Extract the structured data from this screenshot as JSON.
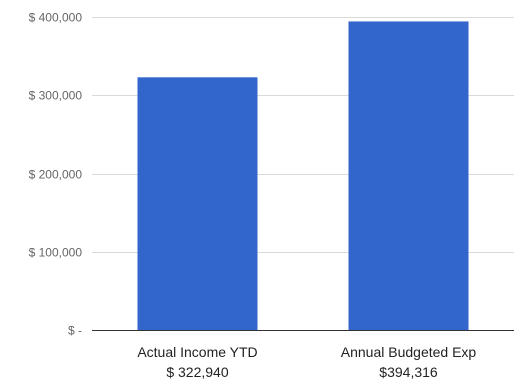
{
  "chart_data": {
    "type": "bar",
    "title": "",
    "xlabel": "",
    "ylabel": "",
    "categories": [
      [
        "Actual Income YTD",
        "$ 322,940"
      ],
      [
        "Annual Budgeted Exp",
        "$394,316"
      ]
    ],
    "values": [
      322940,
      394316
    ],
    "ylim": [
      0,
      400000
    ],
    "yticks": [
      {
        "value": 0,
        "label": "$ -"
      },
      {
        "value": 100000,
        "label": "$ 100,000"
      },
      {
        "value": 200000,
        "label": "$ 200,000"
      },
      {
        "value": 300000,
        "label": "$ 300,000"
      },
      {
        "value": 400000,
        "label": "$ 400,000"
      }
    ],
    "grid": true,
    "legend": "none",
    "colors": {
      "bar": "#3366cc",
      "grid": "#d9d9d9",
      "axis": "#333333"
    }
  }
}
